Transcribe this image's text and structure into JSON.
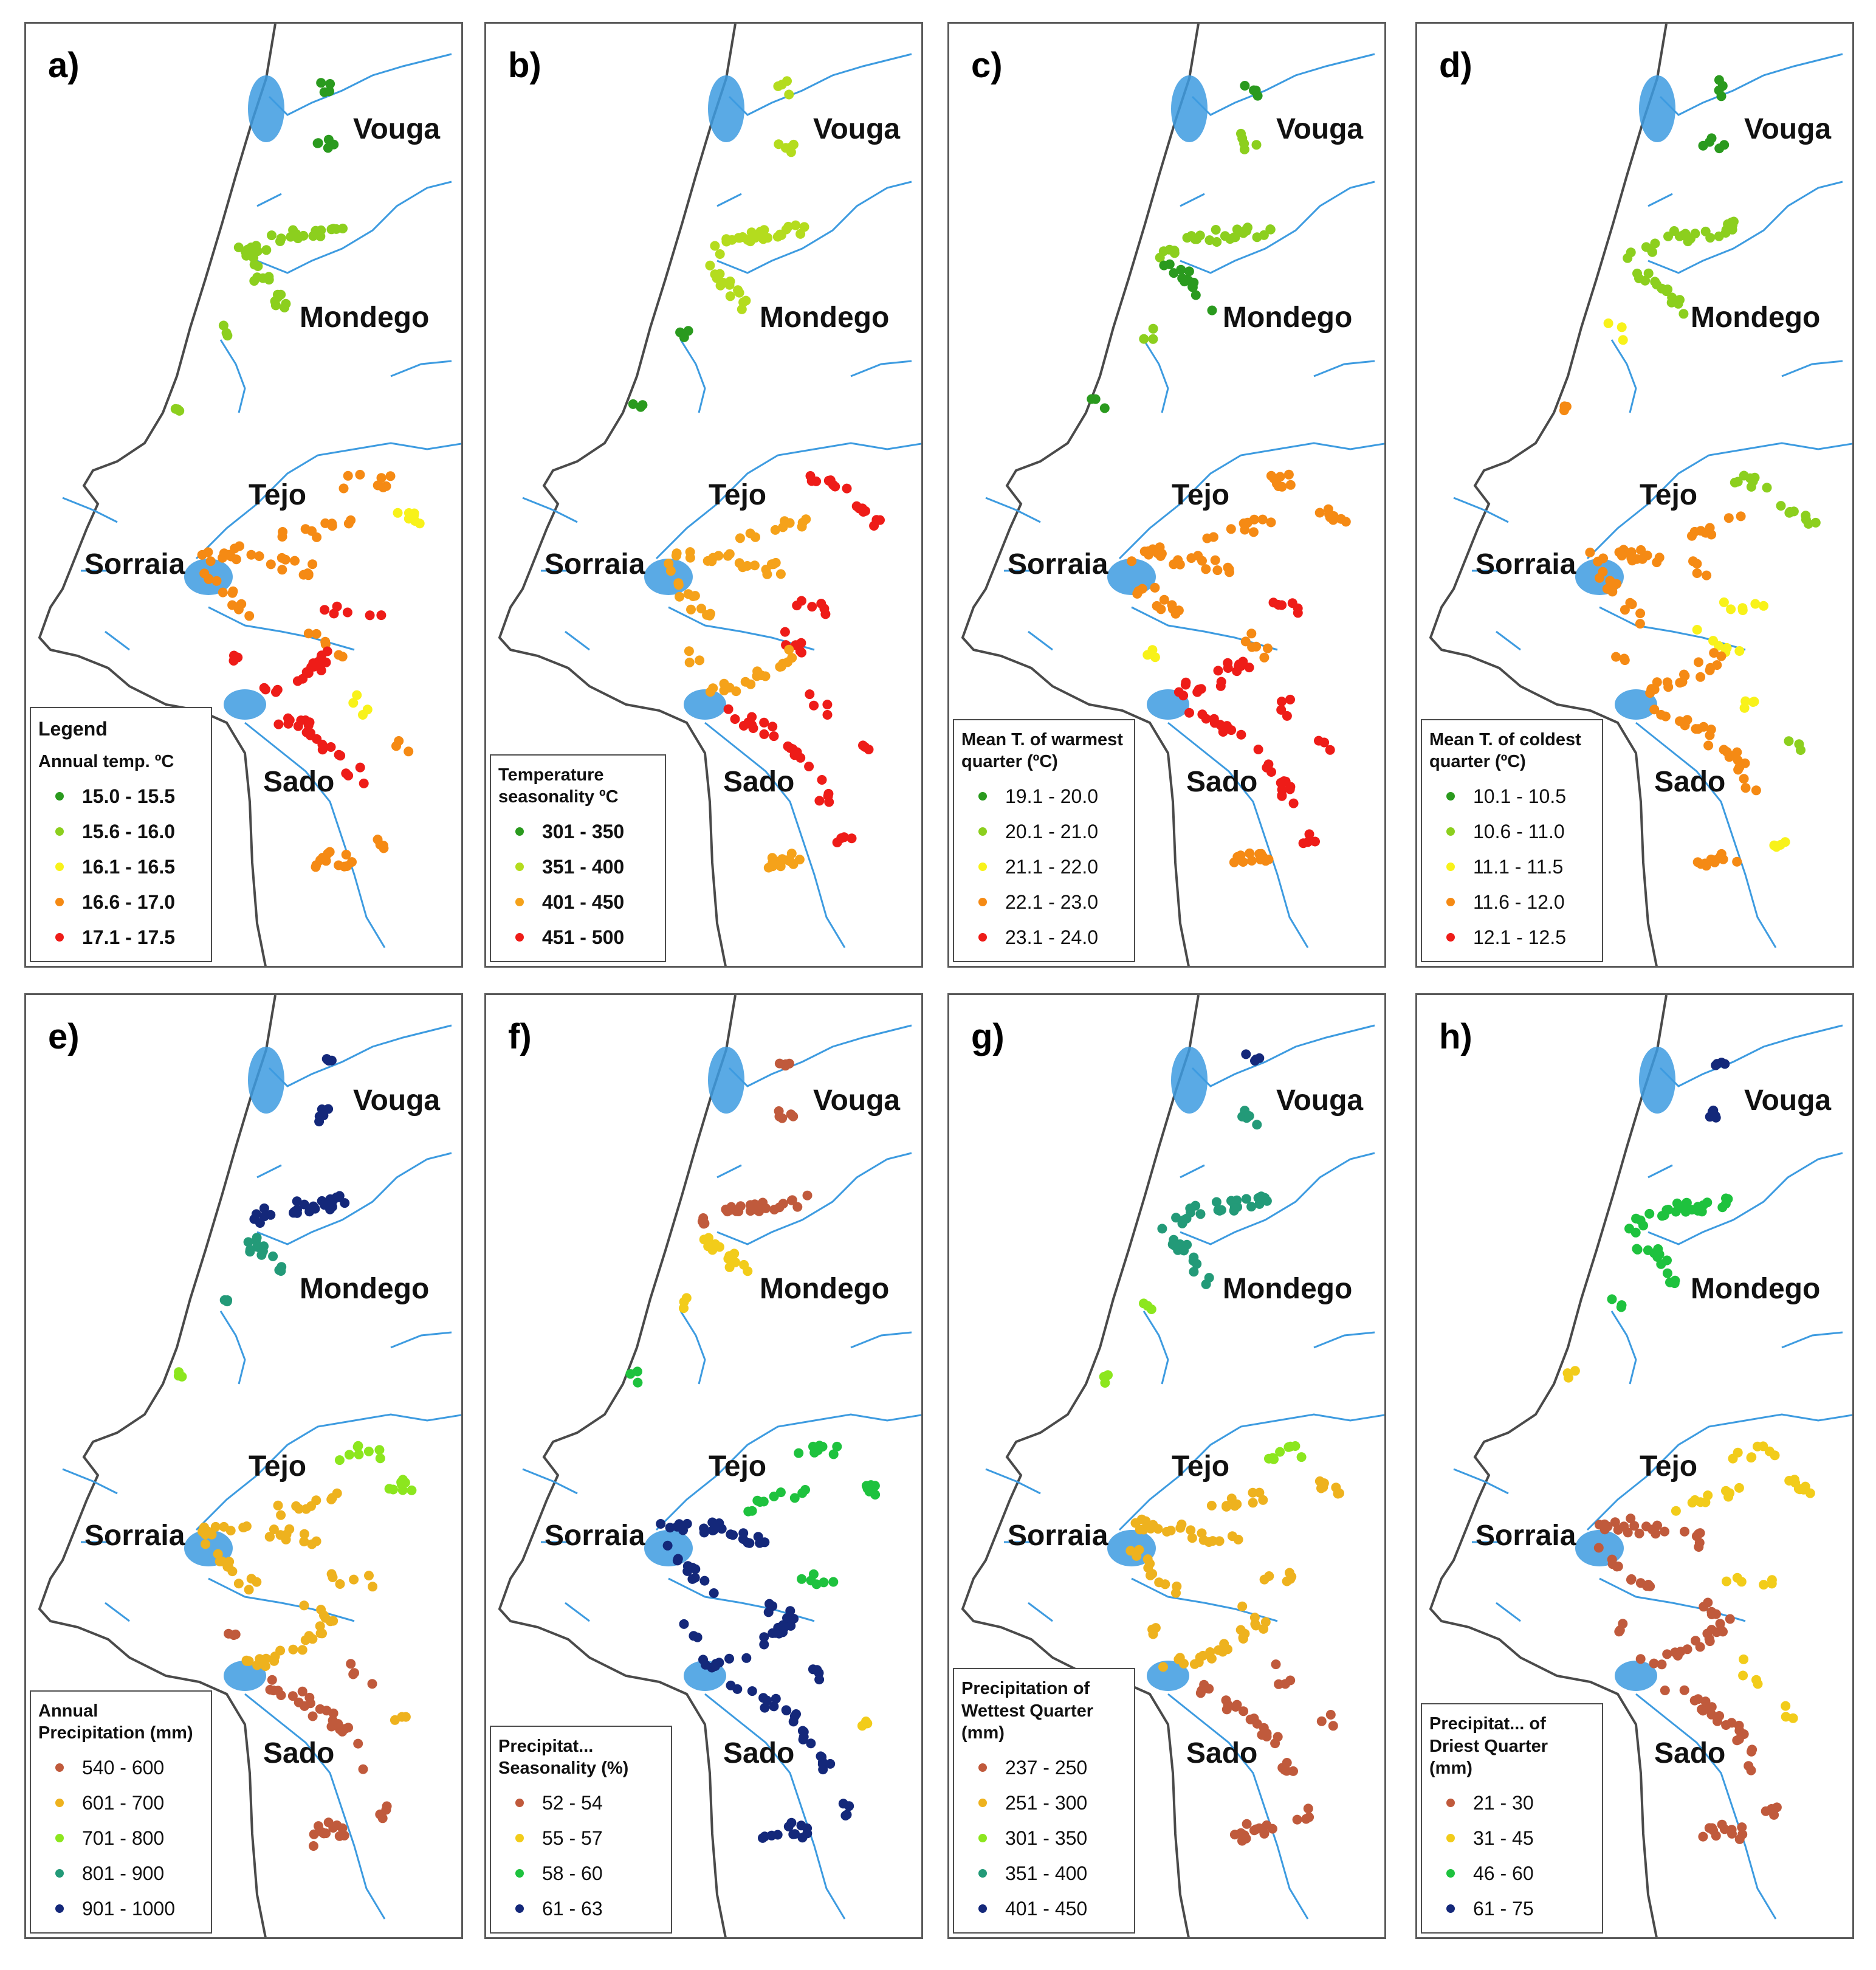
{
  "figure": {
    "rivers": {
      "vouga": "Vouga",
      "mondego": "Mondego",
      "tejo": "Tejo",
      "sorraia": "Sorraia",
      "sado": "Sado"
    },
    "colors": {
      "river": "#3d9be0",
      "coast": "#4a4a4a",
      "frame": "#5a5a5a"
    },
    "panels": [
      {
        "label": "a)",
        "legend_heading": "Legend",
        "legend_title": "Annual temp. ºC",
        "bold_classes": true,
        "classes": [
          {
            "label": "15.0 - 15.5",
            "color": "#2a9a1e"
          },
          {
            "label": "15.6 - 16.0",
            "color": "#8ccf1e"
          },
          {
            "label": "16.1 - 16.5",
            "color": "#f8f21a"
          },
          {
            "label": "16.6 - 17.0",
            "color": "#f58a14"
          },
          {
            "label": "17.1 - 17.5",
            "color": "#ee1c18"
          }
        ]
      },
      {
        "label": "b)",
        "legend_heading": "",
        "legend_title": "Temperature seasonality ºC",
        "bold_classes": true,
        "classes": [
          {
            "label": "301 - 350",
            "color": "#2a9a1e"
          },
          {
            "label": "351 - 400",
            "color": "#b4dc1e"
          },
          {
            "label": "401 - 450",
            "color": "#f5a21a"
          },
          {
            "label": "451 - 500",
            "color": "#ee1c18"
          }
        ]
      },
      {
        "label": "c)",
        "legend_heading": "",
        "legend_title": "Mean T. of warmest quarter (ºC)",
        "bold_classes": false,
        "classes": [
          {
            "label": "19.1 - 20.0",
            "color": "#2a9a1e"
          },
          {
            "label": "20.1 - 21.0",
            "color": "#8ccf1e"
          },
          {
            "label": "21.1 - 22.0",
            "color": "#f8f21a"
          },
          {
            "label": "22.1 - 23.0",
            "color": "#f58a14"
          },
          {
            "label": "23.1 - 24.0",
            "color": "#ee1c18"
          }
        ]
      },
      {
        "label": "d)",
        "legend_heading": "",
        "legend_title": "Mean T. of coldest quarter (ºC)",
        "bold_classes": false,
        "classes": [
          {
            "label": "10.1 - 10.5",
            "color": "#2a9a1e"
          },
          {
            "label": "10.6 - 11.0",
            "color": "#8ccf1e"
          },
          {
            "label": "11.1 - 11.5",
            "color": "#f8f21a"
          },
          {
            "label": "11.6 - 12.0",
            "color": "#f58a14"
          },
          {
            "label": "12.1 - 12.5",
            "color": "#ee1c18"
          }
        ]
      },
      {
        "label": "e)",
        "legend_heading": "",
        "legend_title": "Annual Precipitation (mm)",
        "bold_classes": false,
        "classes": [
          {
            "label": "540 - 600",
            "color": "#c05a3c"
          },
          {
            "label": "601 - 700",
            "color": "#eeb21e"
          },
          {
            "label": "701 - 800",
            "color": "#8ce61e"
          },
          {
            "label": "801 - 900",
            "color": "#239a78"
          },
          {
            "label": "901 - 1000",
            "color": "#14287a"
          }
        ]
      },
      {
        "label": "f)",
        "legend_heading": "",
        "legend_title": "Precipitat... Seasonality (%)",
        "bold_classes": false,
        "classes": [
          {
            "label": "52 - 54",
            "color": "#c05a3c"
          },
          {
            "label": "55 - 57",
            "color": "#f2cc1a"
          },
          {
            "label": "58 - 60",
            "color": "#1ec23e"
          },
          {
            "label": "61 - 63",
            "color": "#14287a"
          }
        ]
      },
      {
        "label": "g)",
        "legend_heading": "",
        "legend_title": "Precipitation of Wettest Quarter (mm)",
        "bold_classes": false,
        "classes": [
          {
            "label": "237 - 250",
            "color": "#c05a3c"
          },
          {
            "label": "251 - 300",
            "color": "#eeb21e"
          },
          {
            "label": "301 - 350",
            "color": "#8ce61e"
          },
          {
            "label": "351 - 400",
            "color": "#239a78"
          },
          {
            "label": "401 - 450",
            "color": "#14287a"
          }
        ]
      },
      {
        "label": "h)",
        "legend_heading": "",
        "legend_title": "Precipitat... of Driest Quarter (mm)",
        "bold_classes": false,
        "classes": [
          {
            "label": "21 - 30",
            "color": "#c05a3c"
          },
          {
            "label": "31 - 45",
            "color": "#f2cc1a"
          },
          {
            "label": "46 - 60",
            "color": "#1ec23e"
          },
          {
            "label": "61 - 75",
            "color": "#14287a"
          }
        ]
      }
    ]
  }
}
